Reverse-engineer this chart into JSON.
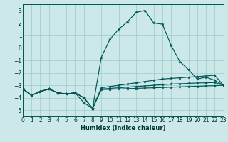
{
  "xlabel": "Humidex (Indice chaleur)",
  "bg_color": "#cce8e8",
  "grid_color": "#99cccc",
  "line_color": "#005555",
  "xlim": [
    0,
    23
  ],
  "ylim": [
    -5.5,
    3.5
  ],
  "yticks": [
    -5,
    -4,
    -3,
    -2,
    -1,
    0,
    1,
    2,
    3
  ],
  "xticks": [
    0,
    1,
    2,
    3,
    4,
    5,
    6,
    7,
    8,
    9,
    10,
    11,
    12,
    13,
    14,
    15,
    16,
    17,
    18,
    19,
    20,
    21,
    22,
    23
  ],
  "series1": [
    -3.3,
    -3.8,
    -3.5,
    -3.3,
    -3.6,
    -3.7,
    -3.6,
    -4.4,
    -4.85,
    -0.75,
    0.7,
    1.5,
    2.1,
    2.85,
    3.0,
    2.0,
    1.9,
    0.2,
    -1.1,
    -1.75,
    -2.5,
    -2.35,
    -2.6,
    -3.0
  ],
  "series2": [
    -3.3,
    -3.8,
    -3.5,
    -3.3,
    -3.6,
    -3.7,
    -3.6,
    -4.0,
    -4.85,
    -3.2,
    -3.1,
    -3.0,
    -2.9,
    -2.8,
    -2.7,
    -2.6,
    -2.5,
    -2.45,
    -2.4,
    -2.35,
    -2.3,
    -2.25,
    -2.2,
    -3.0
  ],
  "series3": [
    -3.3,
    -3.8,
    -3.5,
    -3.3,
    -3.6,
    -3.7,
    -3.6,
    -4.0,
    -4.85,
    -3.3,
    -3.25,
    -3.2,
    -3.15,
    -3.1,
    -3.05,
    -3.0,
    -2.95,
    -2.9,
    -2.88,
    -2.85,
    -2.82,
    -2.8,
    -2.78,
    -3.0
  ],
  "series4": [
    -3.3,
    -3.8,
    -3.5,
    -3.3,
    -3.6,
    -3.7,
    -3.6,
    -4.0,
    -4.85,
    -3.35,
    -3.32,
    -3.3,
    -3.27,
    -3.25,
    -3.22,
    -3.2,
    -3.18,
    -3.15,
    -3.13,
    -3.1,
    -3.08,
    -3.05,
    -3.03,
    -3.0
  ]
}
